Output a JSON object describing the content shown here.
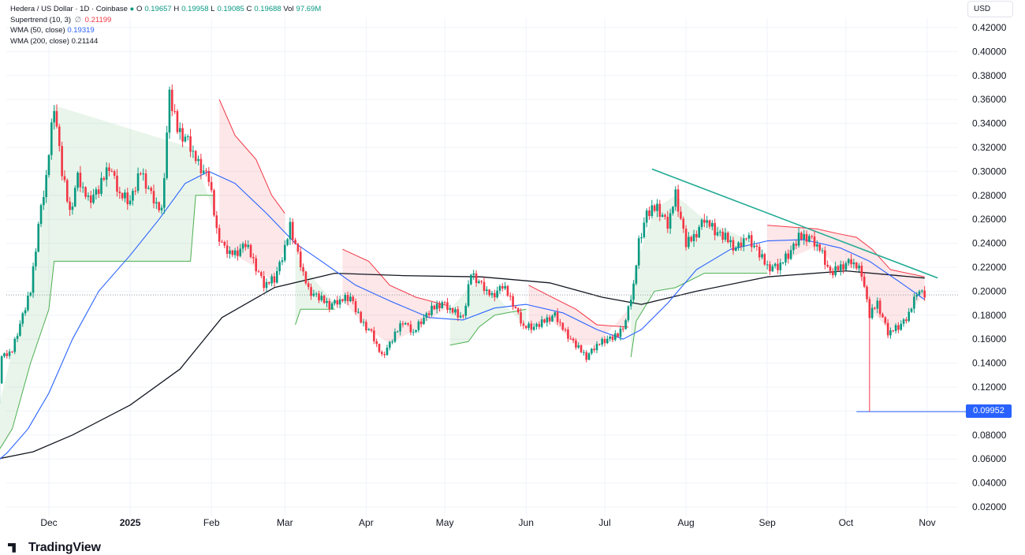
{
  "legend": {
    "symbol": "Hedera / US Dollar · 1D · Coinbase",
    "o_label": "O",
    "o_value": "0.19657",
    "h_label": "H",
    "h_value": "0.19958",
    "l_label": "L",
    "l_value": "0.19085",
    "c_label": "C",
    "c_value": "0.19688",
    "vol_label": "Vol",
    "vol_value": "97.69",
    "vol_unit": "M",
    "supertrend_label": "Supertrend (10, 3)",
    "supertrend_sep": "∅",
    "supertrend_value": "0.21199",
    "wma50_label": "WMA (50, close)",
    "wma50_value": "0.19319",
    "wma200_label": "WMA (200, close)",
    "wma200_value": "0.21144"
  },
  "currency_label": "USD",
  "price_flag": "0.09952",
  "brand": "TradingView",
  "colors": {
    "up": "#089981",
    "down": "#f23645",
    "wma50": "#2962ff",
    "wma200": "#131722",
    "supertrend_up": "#4caf50",
    "supertrend_down": "#f23645",
    "trendline": "#22ab94",
    "grid": "#f0f3fa"
  },
  "chart_data": {
    "type": "candlestick",
    "ylim": [
      0.005,
      0.43
    ],
    "yticks": [
      "0.42000",
      "0.40000",
      "0.38000",
      "0.36000",
      "0.34000",
      "0.32000",
      "0.30000",
      "0.28000",
      "0.26000",
      "0.24000",
      "0.22000",
      "0.20000",
      "0.18000",
      "0.16000",
      "0.14000",
      "0.12000",
      "0.10000",
      "0.08000",
      "0.06000",
      "0.04000",
      "0.02000"
    ],
    "ytick_values": [
      0.42,
      0.4,
      0.38,
      0.36,
      0.34,
      0.32,
      0.3,
      0.28,
      0.26,
      0.24,
      0.22,
      0.2,
      0.18,
      0.16,
      0.14,
      0.12,
      0.1,
      0.08,
      0.06,
      0.04,
      0.02
    ],
    "xticks": [
      "Dec",
      "2025",
      "Feb",
      "Mar",
      "Apr",
      "May",
      "Jun",
      "Jul",
      "Aug",
      "Sep",
      "Oct",
      "Nov"
    ],
    "xtick_dates": [
      "2024-12-01",
      "2025-01-01",
      "2025-02-01",
      "2025-03-01",
      "2025-04-01",
      "2025-05-01",
      "2025-06-01",
      "2025-07-01",
      "2025-08-01",
      "2025-09-01",
      "2025-10-01",
      "2025-11-01"
    ],
    "close_path": [
      [
        "2024-11-07",
        0.06
      ],
      [
        "2024-11-10",
        0.085
      ],
      [
        "2024-11-13",
        0.145
      ],
      [
        "2024-11-17",
        0.15
      ],
      [
        "2024-11-21",
        0.18
      ],
      [
        "2024-11-24",
        0.2
      ],
      [
        "2024-11-27",
        0.255
      ],
      [
        "2024-11-30",
        0.295
      ],
      [
        "2024-12-03",
        0.355
      ],
      [
        "2024-12-06",
        0.3
      ],
      [
        "2024-12-09",
        0.265
      ],
      [
        "2024-12-12",
        0.295
      ],
      [
        "2024-12-16",
        0.275
      ],
      [
        "2024-12-20",
        0.285
      ],
      [
        "2024-12-24",
        0.305
      ],
      [
        "2024-12-28",
        0.28
      ],
      [
        "2025-01-01",
        0.275
      ],
      [
        "2025-01-05",
        0.3
      ],
      [
        "2025-01-09",
        0.28
      ],
      [
        "2025-01-13",
        0.265
      ],
      [
        "2025-01-16",
        0.365
      ],
      [
        "2025-01-19",
        0.335
      ],
      [
        "2025-01-23",
        0.325
      ],
      [
        "2025-01-27",
        0.305
      ],
      [
        "2025-01-31",
        0.295
      ],
      [
        "2025-02-03",
        0.25
      ],
      [
        "2025-02-06",
        0.235
      ],
      [
        "2025-02-10",
        0.23
      ],
      [
        "2025-02-14",
        0.24
      ],
      [
        "2025-02-18",
        0.22
      ],
      [
        "2025-02-21",
        0.205
      ],
      [
        "2025-02-25",
        0.21
      ],
      [
        "2025-03-01",
        0.235
      ],
      [
        "2025-03-03",
        0.255
      ],
      [
        "2025-03-06",
        0.23
      ],
      [
        "2025-03-10",
        0.2
      ],
      [
        "2025-03-14",
        0.195
      ],
      [
        "2025-03-18",
        0.188
      ],
      [
        "2025-03-22",
        0.192
      ],
      [
        "2025-03-26",
        0.195
      ],
      [
        "2025-03-30",
        0.175
      ],
      [
        "2025-04-03",
        0.165
      ],
      [
        "2025-04-07",
        0.145
      ],
      [
        "2025-04-11",
        0.16
      ],
      [
        "2025-04-15",
        0.175
      ],
      [
        "2025-04-19",
        0.165
      ],
      [
        "2025-04-22",
        0.175
      ],
      [
        "2025-04-26",
        0.185
      ],
      [
        "2025-04-30",
        0.19
      ],
      [
        "2025-05-04",
        0.183
      ],
      [
        "2025-05-08",
        0.178
      ],
      [
        "2025-05-11",
        0.215
      ],
      [
        "2025-05-15",
        0.205
      ],
      [
        "2025-05-19",
        0.195
      ],
      [
        "2025-05-23",
        0.205
      ],
      [
        "2025-05-27",
        0.19
      ],
      [
        "2025-05-31",
        0.17
      ],
      [
        "2025-06-04",
        0.17
      ],
      [
        "2025-06-08",
        0.175
      ],
      [
        "2025-06-12",
        0.18
      ],
      [
        "2025-06-16",
        0.165
      ],
      [
        "2025-06-20",
        0.155
      ],
      [
        "2025-06-24",
        0.145
      ],
      [
        "2025-06-28",
        0.155
      ],
      [
        "2025-07-02",
        0.16
      ],
      [
        "2025-07-06",
        0.163
      ],
      [
        "2025-07-09",
        0.175
      ],
      [
        "2025-07-12",
        0.205
      ],
      [
        "2025-07-14",
        0.24
      ],
      [
        "2025-07-17",
        0.265
      ],
      [
        "2025-07-21",
        0.27
      ],
      [
        "2025-07-25",
        0.255
      ],
      [
        "2025-07-28",
        0.28
      ],
      [
        "2025-08-01",
        0.24
      ],
      [
        "2025-08-04",
        0.245
      ],
      [
        "2025-08-08",
        0.26
      ],
      [
        "2025-08-12",
        0.25
      ],
      [
        "2025-08-16",
        0.245
      ],
      [
        "2025-08-20",
        0.235
      ],
      [
        "2025-08-24",
        0.245
      ],
      [
        "2025-08-28",
        0.235
      ],
      [
        "2025-09-01",
        0.22
      ],
      [
        "2025-09-05",
        0.22
      ],
      [
        "2025-09-09",
        0.23
      ],
      [
        "2025-09-13",
        0.245
      ],
      [
        "2025-09-17",
        0.245
      ],
      [
        "2025-09-21",
        0.235
      ],
      [
        "2025-09-25",
        0.215
      ],
      [
        "2025-09-29",
        0.22
      ],
      [
        "2025-10-03",
        0.225
      ],
      [
        "2025-10-07",
        0.215
      ],
      [
        "2025-10-10",
        0.18
      ],
      [
        "2025-10-13",
        0.19
      ],
      [
        "2025-10-17",
        0.165
      ],
      [
        "2025-10-21",
        0.17
      ],
      [
        "2025-10-25",
        0.18
      ],
      [
        "2025-10-28",
        0.2
      ],
      [
        "2025-10-31",
        0.1969
      ]
    ],
    "low_wick": {
      "date": "2025-10-10",
      "value": 0.0995
    },
    "wma50": [
      [
        "2024-11-07",
        0.05
      ],
      [
        "2024-11-15",
        0.065
      ],
      [
        "2024-11-23",
        0.085
      ],
      [
        "2024-12-01",
        0.115
      ],
      [
        "2024-12-10",
        0.16
      ],
      [
        "2024-12-20",
        0.2
      ],
      [
        "2025-01-01",
        0.23
      ],
      [
        "2025-01-12",
        0.26
      ],
      [
        "2025-01-22",
        0.29
      ],
      [
        "2025-01-31",
        0.3
      ],
      [
        "2025-02-10",
        0.29
      ],
      [
        "2025-02-22",
        0.265
      ],
      [
        "2025-03-05",
        0.24
      ],
      [
        "2025-03-15",
        0.225
      ],
      [
        "2025-03-28",
        0.205
      ],
      [
        "2025-04-10",
        0.192
      ],
      [
        "2025-04-25",
        0.178
      ],
      [
        "2025-05-08",
        0.176
      ],
      [
        "2025-05-20",
        0.186
      ],
      [
        "2025-06-01",
        0.189
      ],
      [
        "2025-06-15",
        0.182
      ],
      [
        "2025-06-28",
        0.168
      ],
      [
        "2025-07-08",
        0.16
      ],
      [
        "2025-07-15",
        0.168
      ],
      [
        "2025-07-25",
        0.19
      ],
      [
        "2025-08-05",
        0.218
      ],
      [
        "2025-08-18",
        0.235
      ],
      [
        "2025-09-01",
        0.242
      ],
      [
        "2025-09-15",
        0.243
      ],
      [
        "2025-09-29",
        0.236
      ],
      [
        "2025-10-10",
        0.225
      ],
      [
        "2025-10-22",
        0.207
      ],
      [
        "2025-10-31",
        0.193
      ]
    ],
    "wma200": [
      [
        "2024-11-07",
        0.058
      ],
      [
        "2024-11-25",
        0.066
      ],
      [
        "2024-12-10",
        0.08
      ],
      [
        "2025-01-01",
        0.105
      ],
      [
        "2025-01-20",
        0.135
      ],
      [
        "2025-02-05",
        0.178
      ],
      [
        "2025-02-25",
        0.203
      ],
      [
        "2025-03-20",
        0.215
      ],
      [
        "2025-04-15",
        0.213
      ],
      [
        "2025-05-15",
        0.212
      ],
      [
        "2025-06-10",
        0.207
      ],
      [
        "2025-06-30",
        0.195
      ],
      [
        "2025-07-15",
        0.189
      ],
      [
        "2025-08-05",
        0.2
      ],
      [
        "2025-09-01",
        0.212
      ],
      [
        "2025-10-01",
        0.217
      ],
      [
        "2025-10-31",
        0.211
      ]
    ],
    "supertrend": [
      {
        "dir": "up",
        "pts": [
          [
            "2024-11-07",
            0.05
          ],
          [
            "2024-11-17",
            0.085
          ],
          [
            "2024-11-24",
            0.14
          ],
          [
            "2024-12-01",
            0.185
          ],
          [
            "2024-12-03",
            0.225
          ],
          [
            "2025-01-24",
            0.225
          ],
          [
            "2025-01-26",
            0.28
          ],
          [
            "2025-02-02",
            0.28
          ]
        ]
      },
      {
        "dir": "down",
        "pts": [
          [
            "2025-02-04",
            0.36
          ],
          [
            "2025-02-10",
            0.33
          ],
          [
            "2025-02-18",
            0.31
          ],
          [
            "2025-02-24",
            0.28
          ],
          [
            "2025-03-01",
            0.265
          ]
        ]
      },
      {
        "dir": "up",
        "pts": [
          [
            "2025-03-05",
            0.172
          ],
          [
            "2025-03-07",
            0.185
          ],
          [
            "2025-03-20",
            0.185
          ]
        ]
      },
      {
        "dir": "down",
        "pts": [
          [
            "2025-03-23",
            0.235
          ],
          [
            "2025-04-02",
            0.225
          ],
          [
            "2025-04-10",
            0.205
          ],
          [
            "2025-04-20",
            0.195
          ],
          [
            "2025-05-02",
            0.188
          ]
        ]
      },
      {
        "dir": "up",
        "pts": [
          [
            "2025-05-03",
            0.155
          ],
          [
            "2025-05-10",
            0.158
          ],
          [
            "2025-05-14",
            0.17
          ],
          [
            "2025-05-20",
            0.18
          ],
          [
            "2025-06-01",
            0.185
          ]
        ]
      },
      {
        "dir": "down",
        "pts": [
          [
            "2025-06-02",
            0.205
          ],
          [
            "2025-06-10",
            0.196
          ],
          [
            "2025-06-20",
            0.185
          ],
          [
            "2025-06-28",
            0.172
          ],
          [
            "2025-07-10",
            0.17
          ]
        ]
      },
      {
        "dir": "up",
        "pts": [
          [
            "2025-07-11",
            0.145
          ],
          [
            "2025-07-13",
            0.175
          ],
          [
            "2025-07-20",
            0.2
          ],
          [
            "2025-07-28",
            0.203
          ],
          [
            "2025-08-08",
            0.215
          ],
          [
            "2025-08-25",
            0.215
          ],
          [
            "2025-09-01",
            0.215
          ]
        ]
      },
      {
        "dir": "down",
        "pts": [
          [
            "2025-09-01",
            0.255
          ],
          [
            "2025-09-20",
            0.252
          ],
          [
            "2025-09-28",
            0.248
          ],
          [
            "2025-10-05",
            0.245
          ],
          [
            "2025-10-11",
            0.235
          ],
          [
            "2025-10-18",
            0.218
          ],
          [
            "2025-10-31",
            0.212
          ]
        ]
      }
    ],
    "trendline": [
      [
        "2025-07-19",
        0.302
      ],
      [
        "2025-11-05",
        0.211
      ]
    ],
    "hline": {
      "from": "2025-10-05",
      "value": 0.0995
    }
  }
}
